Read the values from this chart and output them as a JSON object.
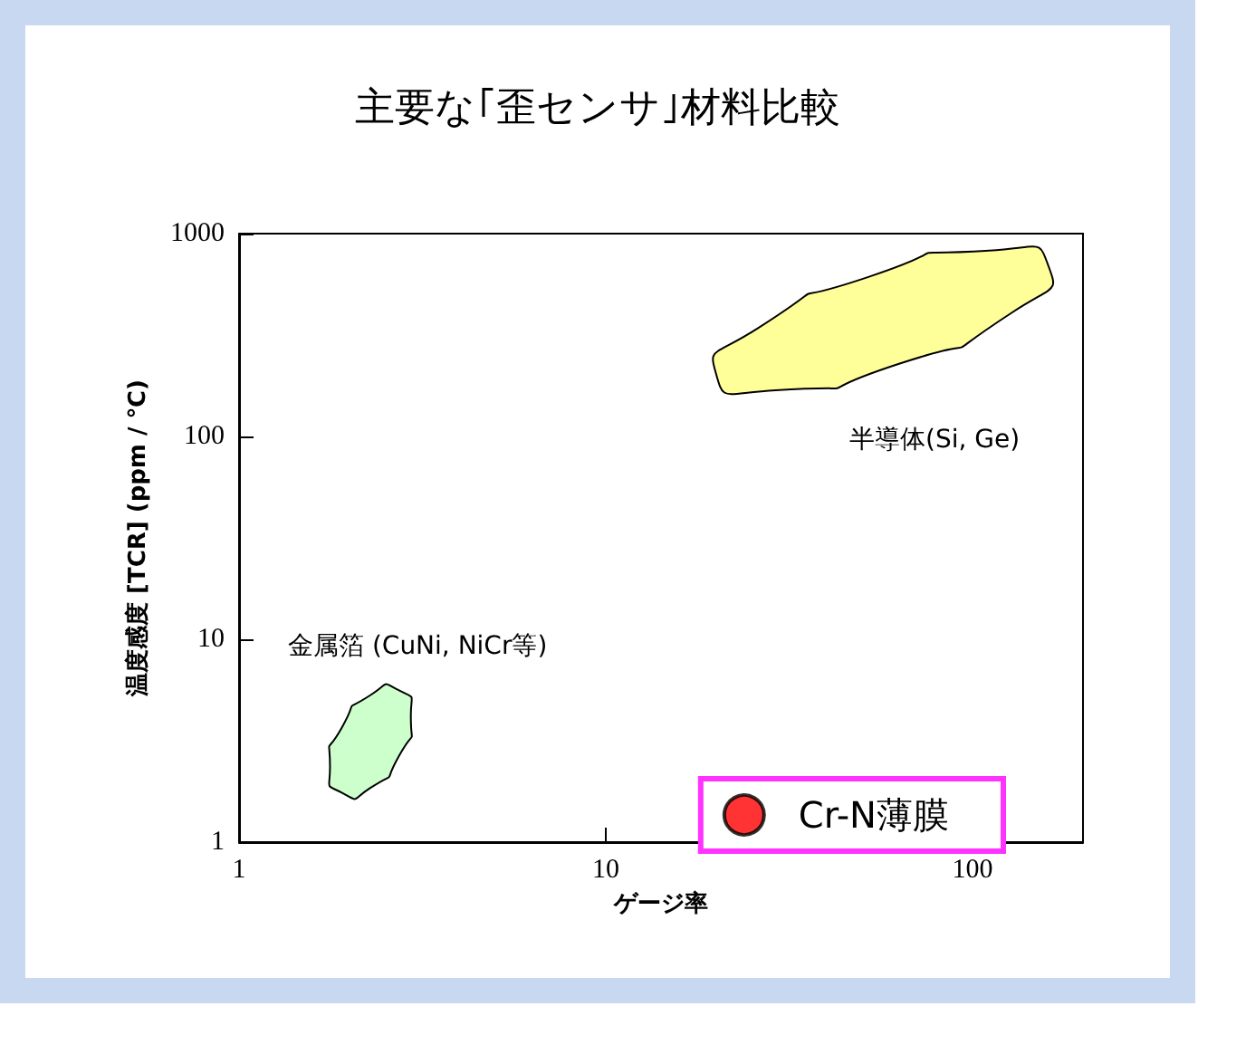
{
  "chart_data": {
    "type": "area",
    "title": "主要な｢歪センサ｣材料比較",
    "xlabel": "ゲージ率",
    "ylabel": "温度感度 [TCR] (ppm / ℃)",
    "log": "xy",
    "xlim": [
      1,
      200
    ],
    "ylim": [
      1,
      1000
    ],
    "xticks": [
      1,
      10,
      100
    ],
    "yticks": [
      1,
      10,
      100,
      1000
    ],
    "grid": false,
    "legend": "bottom right",
    "series": [
      {
        "color": "#ffff99",
        "x": [
          161,
          128,
          63,
          29,
          20,
          26,
          52,
          111
        ],
        "values": [
          692,
          408,
          228,
          169,
          202,
          342,
          611,
          824
        ]
      },
      {
        "color": "#ccffcc",
        "x": [
          2.73,
          2.94,
          2.73,
          2.28,
          1.91,
          1.77,
          1.91,
          2.28
        ],
        "values": [
          5.6,
          4.2,
          2.66,
          1.85,
          1.75,
          2.34,
          3.69,
          5.3
        ]
      },
      {
        "type": "scatter",
        "name": "Cr-N薄膜",
        "color": "#ff0000"
      }
    ],
    "annotations": [
      "半導体(Si, Ge)",
      "金属箔 (CuNi, NiCr等)"
    ]
  }
}
